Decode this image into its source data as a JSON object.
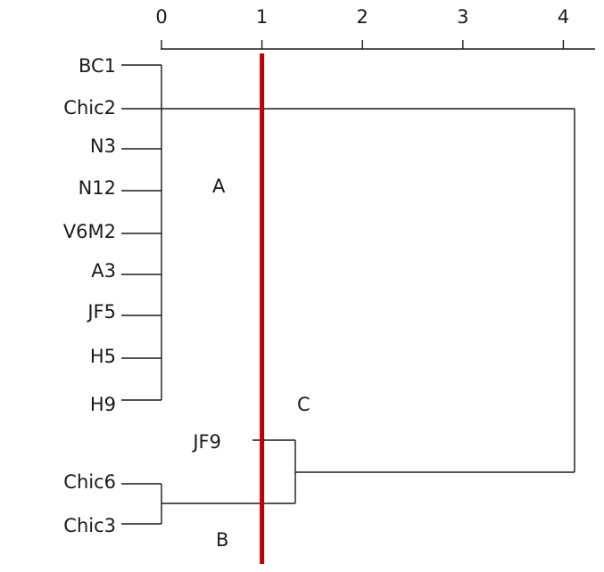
{
  "axis": {
    "ticks": [
      0,
      1,
      2,
      3,
      4
    ],
    "range": [
      0,
      4.3
    ]
  },
  "leaves": [
    {
      "label": "BC1"
    },
    {
      "label": "Chic2"
    },
    {
      "label": "N3"
    },
    {
      "label": "N12"
    },
    {
      "label": "V6M2"
    },
    {
      "label": "A3"
    },
    {
      "label": "JF5"
    },
    {
      "label": "H5"
    },
    {
      "label": "H9"
    },
    {
      "label": "JF9"
    },
    {
      "label": "Chic6"
    },
    {
      "label": "Chic3"
    }
  ],
  "clusters": {
    "A": {
      "label": "A",
      "members": [
        "BC1",
        "N3",
        "N12",
        "V6M2",
        "A3",
        "JF5",
        "H5",
        "H9"
      ],
      "height": 0
    },
    "B": {
      "label": "B",
      "members": [
        "Chic6",
        "Chic3"
      ],
      "height": 0
    },
    "C": {
      "label": "C",
      "members": [
        "JF9",
        "B"
      ],
      "height": 1.35
    },
    "root": {
      "members": [
        "A",
        "Chic2",
        "C"
      ],
      "height": 4.12
    }
  },
  "cut_line": {
    "value": 1,
    "color": "#c00000"
  },
  "colors": {
    "lines": "#1a1a1a",
    "cut_line": "#c00000"
  }
}
